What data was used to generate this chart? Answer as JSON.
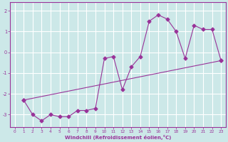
{
  "xlabel": "Windchill (Refroidissement éolien,°C)",
  "xlim": [
    -0.5,
    23.5
  ],
  "ylim": [
    -3.6,
    2.4
  ],
  "xticks": [
    0,
    1,
    2,
    3,
    4,
    5,
    6,
    7,
    8,
    9,
    10,
    11,
    12,
    13,
    14,
    15,
    16,
    17,
    18,
    19,
    20,
    21,
    22,
    23
  ],
  "yticks": [
    -3,
    -2,
    -1,
    0,
    1,
    2
  ],
  "bg_color": "#cce8e8",
  "grid_color": "#aacccc",
  "line_color": "#993399",
  "series1_x": [
    1,
    2,
    3,
    4,
    5,
    6,
    7,
    8,
    9,
    10,
    11,
    12,
    13,
    14,
    15,
    16,
    17,
    18,
    19,
    20,
    21,
    22,
    23
  ],
  "series1_y": [
    -2.3,
    -3.0,
    -3.3,
    -3.0,
    -3.1,
    -3.1,
    -2.8,
    -2.8,
    -2.7,
    -0.3,
    -0.2,
    -1.8,
    -0.7,
    -0.2,
    1.5,
    1.8,
    1.6,
    1.0,
    -0.3,
    1.3,
    1.1,
    1.1,
    -0.4
  ],
  "series2_x": [
    1,
    23
  ],
  "series2_y": [
    -2.3,
    -0.4
  ],
  "markersize": 2.5,
  "linewidth": 0.8
}
